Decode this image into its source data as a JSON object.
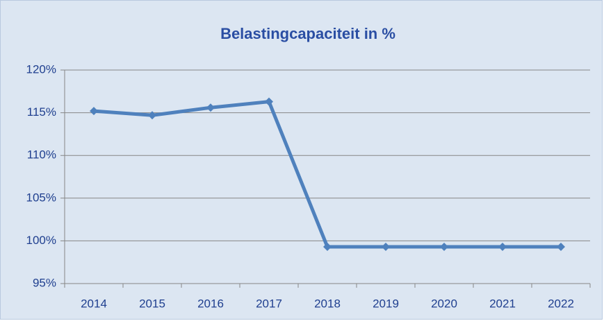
{
  "chart_data": {
    "type": "line",
    "title": "Belastingcapaciteit in %",
    "categories": [
      "2014",
      "2015",
      "2016",
      "2017",
      "2018",
      "2019",
      "2020",
      "2021",
      "2022"
    ],
    "series": [
      {
        "name": "Belastingcapaciteit",
        "color": "#4f81bd",
        "values": [
          115.2,
          114.7,
          115.6,
          116.3,
          99.3,
          99.3,
          99.3,
          99.3,
          99.3
        ]
      }
    ],
    "ylim": [
      95,
      120
    ],
    "yticks": [
      {
        "value": 95,
        "label": "95%"
      },
      {
        "value": 100,
        "label": "100%"
      },
      {
        "value": 105,
        "label": "105%"
      },
      {
        "value": 110,
        "label": "110%"
      },
      {
        "value": 115,
        "label": "115%"
      },
      {
        "value": 120,
        "label": "120%"
      }
    ],
    "grid": true
  }
}
